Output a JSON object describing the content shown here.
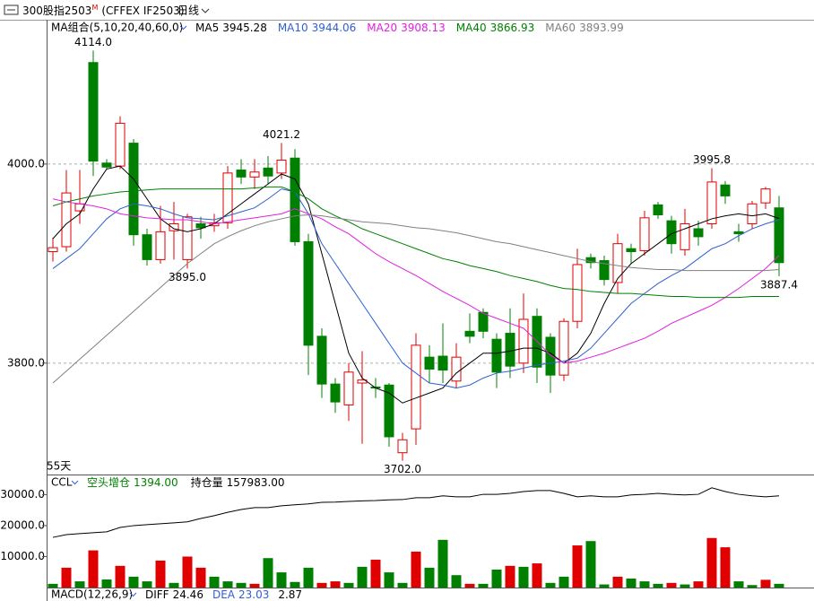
{
  "toolbar": {
    "symbol": "300股指2503",
    "badge": "M",
    "code": "(CFFEX IF2503)",
    "period": "日线"
  },
  "chart_data": [
    {
      "type": "candlestick",
      "title": "MA组合(5,10,20,40,60,0)",
      "days_label": "55天",
      "ylim": [
        3689,
        4145
      ],
      "yticks": [
        {
          "value": 3800,
          "label": "3800.0"
        },
        {
          "value": 4000,
          "label": "4000.0"
        }
      ],
      "grid": true,
      "up_color": "#e00000",
      "down_color": "#008000",
      "open": [
        3912,
        3917,
        3953,
        4102,
        4001,
        3998,
        4021,
        3929,
        3904,
        3933,
        3904,
        3940,
        3938,
        3941,
        3994,
        3987,
        3996,
        3991,
        4006,
        3922,
        3827,
        3779,
        3758,
        3780,
        3776,
        3778,
        3710,
        3734,
        3806,
        3807,
        3782,
        3832,
        3851,
        3824,
        3830,
        3800,
        3847,
        3826,
        3788,
        3842,
        3906,
        3903,
        3881,
        3915,
        3913,
        3959,
        3943,
        3914,
        3935,
        3940,
        3979,
        3932,
        3940,
        3961,
        3956
      ],
      "high": [
        3926,
        3994,
        3994,
        4114,
        4005,
        4048,
        4025,
        3935,
        3958,
        3962,
        3950,
        3947,
        3950,
        3998,
        4005,
        4005,
        4008,
        4021.2,
        4015,
        3930,
        3835,
        3785,
        3800,
        3812,
        3785,
        3780,
        3730,
        3830,
        3818,
        3840,
        3820,
        3850,
        3855,
        3830,
        3855,
        3870,
        3855,
        3830,
        3845,
        3915,
        3910,
        3908,
        3930,
        3920,
        3953,
        3962,
        3948,
        3955,
        3943,
        3995.8,
        3983,
        3940,
        3963,
        3977,
        3968
      ],
      "low": [
        3902,
        3912,
        3940,
        3988,
        3995,
        3995,
        3918,
        3898,
        3900,
        3904,
        3895,
        3925,
        3932,
        3935,
        3980,
        3975,
        3980,
        3985,
        3918,
        3788,
        3765,
        3750,
        3742,
        3719,
        3765,
        3716,
        3702,
        3718,
        3780,
        3780,
        3775,
        3820,
        3825,
        3775,
        3785,
        3790,
        3780,
        3770,
        3782,
        3835,
        3895,
        3878,
        3870,
        3900,
        3908,
        3945,
        3910,
        3908,
        3918,
        3935,
        3960,
        3922,
        3935,
        3955,
        3887.4
      ],
      "close": [
        3916,
        3971,
        3960,
        4003,
        3997,
        4041,
        3929,
        3904,
        3932,
        3940,
        3947,
        3936,
        3941,
        3991,
        3987,
        3992,
        3988,
        4004,
        3922,
        3818,
        3779,
        3761,
        3791,
        3783,
        3775,
        3726,
        3723,
        3818,
        3794,
        3793,
        3806,
        3827,
        3832,
        3791,
        3797,
        3844,
        3796,
        3788,
        3842,
        3899,
        3901,
        3884,
        3920,
        3912,
        3946,
        3949,
        3920,
        3940,
        3927,
        3982,
        3968,
        3930,
        3960,
        3975,
        3901
      ],
      "annotations": [
        {
          "index": 3,
          "field": "high",
          "label": "4114.0"
        },
        {
          "index": 17,
          "field": "high",
          "label": "4021.2"
        },
        {
          "index": 49,
          "field": "high",
          "label": "3995.8"
        },
        {
          "index": 10,
          "field": "low",
          "label": "3895.0"
        },
        {
          "index": 26,
          "field": "low",
          "label": "3702.0"
        },
        {
          "index": 54,
          "field": "low",
          "label": "3887.4"
        }
      ],
      "series": [
        {
          "name": "MA5",
          "color": "#000000",
          "values": [
            3925,
            3940,
            3950,
            3975,
            3995,
            3998,
            3985,
            3965,
            3945,
            3935,
            3932,
            3935,
            3940,
            3950,
            3960,
            3970,
            3980,
            3990,
            3985,
            3960,
            3910,
            3860,
            3810,
            3785,
            3775,
            3770,
            3760,
            3765,
            3770,
            3775,
            3790,
            3800,
            3810,
            3810,
            3812,
            3815,
            3815,
            3810,
            3800,
            3810,
            3830,
            3860,
            3885,
            3900,
            3910,
            3920,
            3930,
            3935,
            3940,
            3945,
            3948,
            3950,
            3948,
            3950,
            3945.28
          ]
        },
        {
          "name": "MA10",
          "color": "#2f5fd0",
          "values": [
            3895,
            3905,
            3915,
            3930,
            3945,
            3955,
            3960,
            3958,
            3955,
            3950,
            3946,
            3945,
            3944,
            3948,
            3952,
            3956,
            3965,
            3975,
            3972,
            3950,
            3920,
            3900,
            3880,
            3860,
            3840,
            3820,
            3800,
            3790,
            3780,
            3778,
            3775,
            3778,
            3785,
            3790,
            3792,
            3795,
            3798,
            3800,
            3802,
            3805,
            3815,
            3830,
            3845,
            3860,
            3870,
            3880,
            3888,
            3895,
            3905,
            3915,
            3920,
            3928,
            3935,
            3940,
            3944.06
          ]
        },
        {
          "name": "MA20",
          "color": "#e020e0",
          "values": [
            3965,
            3962,
            3960,
            3958,
            3955,
            3950,
            3948,
            3946,
            3945,
            3944,
            3944,
            3942,
            3940,
            3942,
            3944,
            3946,
            3948,
            3950,
            3955,
            3950,
            3945,
            3937,
            3930,
            3920,
            3910,
            3902,
            3895,
            3888,
            3880,
            3872,
            3865,
            3858,
            3850,
            3845,
            3840,
            3835,
            3822,
            3808,
            3800,
            3802,
            3806,
            3810,
            3815,
            3820,
            3825,
            3832,
            3840,
            3846,
            3852,
            3858,
            3866,
            3875,
            3885,
            3895,
            3908.13
          ]
        },
        {
          "name": "MA40",
          "color": "#008000",
          "values": [
            3958,
            3962,
            3965,
            3968,
            3970,
            3972,
            3973,
            3974,
            3975,
            3975,
            3975,
            3975,
            3975,
            3975,
            3975,
            3976,
            3977,
            3977,
            3972,
            3965,
            3955,
            3948,
            3942,
            3935,
            3930,
            3925,
            3920,
            3915,
            3910,
            3905,
            3902,
            3898,
            3895,
            3892,
            3888,
            3885,
            3882,
            3878,
            3875,
            3874,
            3872,
            3871,
            3870,
            3870,
            3869,
            3868,
            3867,
            3867,
            3866,
            3866,
            3866,
            3866,
            3867,
            3867,
            3866.93
          ]
        },
        {
          "name": "MA60",
          "color": "#808080",
          "values": [
            3780,
            3792,
            3804,
            3816,
            3828,
            3840,
            3852,
            3864,
            3876,
            3888,
            3900,
            3910,
            3920,
            3927,
            3933,
            3938,
            3942,
            3945,
            3948,
            3949,
            3948,
            3946,
            3944,
            3942,
            3941,
            3940,
            3938,
            3936,
            3935,
            3933,
            3931,
            3928,
            3925,
            3922,
            3920,
            3917,
            3914,
            3911,
            3908,
            3905,
            3902,
            3900,
            3898,
            3896,
            3895,
            3894,
            3894,
            3893,
            3893,
            3893,
            3893,
            3893,
            3893,
            3893,
            3893.99
          ]
        }
      ]
    },
    {
      "type": "ccl",
      "title": "CCL",
      "ylim": [
        0,
        36200
      ],
      "yticks": [
        {
          "value": 10000,
          "label": "10000.0"
        },
        {
          "value": 20000,
          "label": "20000.0"
        },
        {
          "value": 30000,
          "label": "30000.0"
        }
      ],
      "indicators": [
        {
          "name": "空头增仓",
          "value": 1394,
          "value_label": "1394.00",
          "color": "#008000"
        },
        {
          "name": "持仓量",
          "value": 157983,
          "value_label": "157983.00",
          "color": "#000000"
        }
      ],
      "line": {
        "color": "#000000",
        "values": [
          16200,
          17100,
          17400,
          17700,
          18000,
          19400,
          20000,
          20300,
          20600,
          20900,
          21200,
          22300,
          23200,
          24300,
          25200,
          25800,
          25800,
          26400,
          26700,
          27000,
          27500,
          27600,
          27800,
          28000,
          28100,
          28300,
          28400,
          29000,
          29000,
          29600,
          29300,
          29300,
          30100,
          30100,
          30400,
          31000,
          31300,
          31300,
          30400,
          29300,
          29600,
          29300,
          29300,
          29900,
          30100,
          30400,
          30100,
          29900,
          30100,
          32200,
          31000,
          30100,
          29600,
          29300,
          29600
        ]
      },
      "bars": {
        "values": [
          1200,
          6400,
          2000,
          12000,
          2600,
          7000,
          3500,
          2000,
          8700,
          1500,
          10000,
          6400,
          3500,
          2000,
          1500,
          1200,
          9500,
          4900,
          1800,
          6400,
          1500,
          2000,
          1500,
          6700,
          9000,
          4900,
          1500,
          11600,
          6400,
          15400,
          4000,
          1200,
          1200,
          5800,
          7000,
          6700,
          7800,
          1500,
          3500,
          13600,
          15000,
          1000,
          3500,
          2900,
          2000,
          1200,
          1500,
          1000,
          2000,
          16000,
          13000,
          2000,
          800,
          2500,
          1200
        ],
        "colors": [
          "#008000",
          "#e00000",
          "#008000",
          "#e00000",
          "#008000",
          "#e00000",
          "#008000",
          "#008000",
          "#e00000",
          "#008000",
          "#e00000",
          "#e00000",
          "#008000",
          "#008000",
          "#008000",
          "#e00000",
          "#008000",
          "#008000",
          "#008000",
          "#008000",
          "#e00000",
          "#e00000",
          "#008000",
          "#008000",
          "#e00000",
          "#008000",
          "#008000",
          "#e00000",
          "#008000",
          "#008000",
          "#008000",
          "#e00000",
          "#008000",
          "#008000",
          "#e00000",
          "#008000",
          "#e00000",
          "#008000",
          "#008000",
          "#e00000",
          "#008000",
          "#008000",
          "#e00000",
          "#008000",
          "#008000",
          "#008000",
          "#e00000",
          "#008000",
          "#e00000",
          "#e00000",
          "#e00000",
          "#008000",
          "#008000",
          "#e00000",
          "#008000"
        ]
      }
    },
    {
      "type": "macd",
      "title": "MACD(12,26,9)",
      "indicators": [
        {
          "name": "DIFF",
          "value": 24.46,
          "color": "#000000"
        },
        {
          "name": "DEA",
          "value": 23.03,
          "color": "#2f5fd0"
        },
        {
          "value": 2.87,
          "color": "#000000"
        }
      ]
    }
  ]
}
